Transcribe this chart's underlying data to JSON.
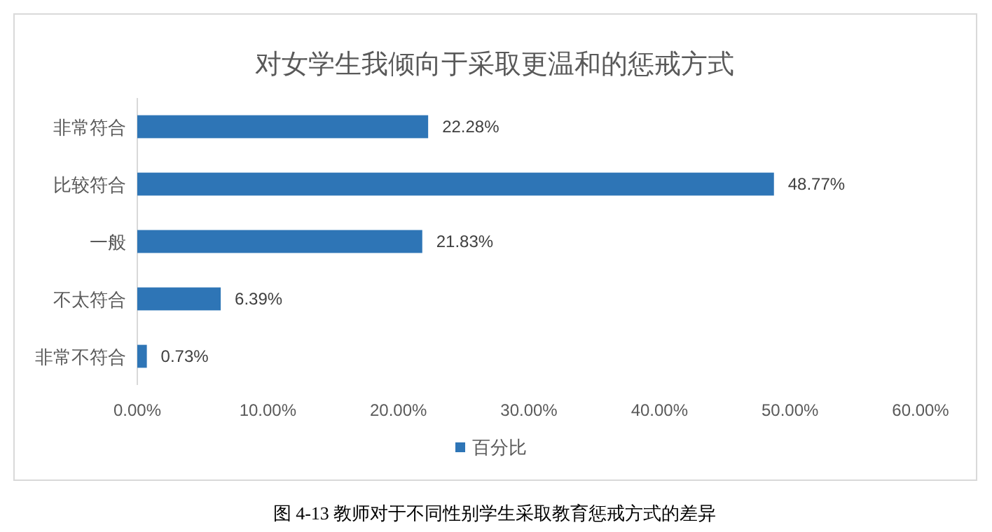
{
  "chart_data": {
    "type": "bar",
    "orientation": "horizontal",
    "title": "对女学生我倾向于采取更温和的惩戒方式",
    "categories": [
      "非常符合",
      "比较符合",
      "一般",
      "不太符合",
      "非常不符合"
    ],
    "series": [
      {
        "name": "百分比",
        "color": "#2e75b6",
        "values": [
          22.28,
          48.77,
          21.83,
          6.39,
          0.73
        ],
        "value_labels": [
          "22.28%",
          "48.77%",
          "21.83%",
          "6.39%",
          "0.73%"
        ]
      }
    ],
    "xlim": [
      0,
      60
    ],
    "xticks": [
      {
        "value": 0,
        "label": "0.00%"
      },
      {
        "value": 10,
        "label": "10.00%"
      },
      {
        "value": 20,
        "label": "20.00%"
      },
      {
        "value": 30,
        "label": "30.00%"
      },
      {
        "value": 40,
        "label": "40.00%"
      },
      {
        "value": 50,
        "label": "50.00%"
      },
      {
        "value": 60,
        "label": "60.00%"
      }
    ],
    "grid": false,
    "legend": "bottom",
    "annotations": [
      "图 4-13 教师对于不同性别学生采取教育惩戒方式的差异"
    ]
  }
}
